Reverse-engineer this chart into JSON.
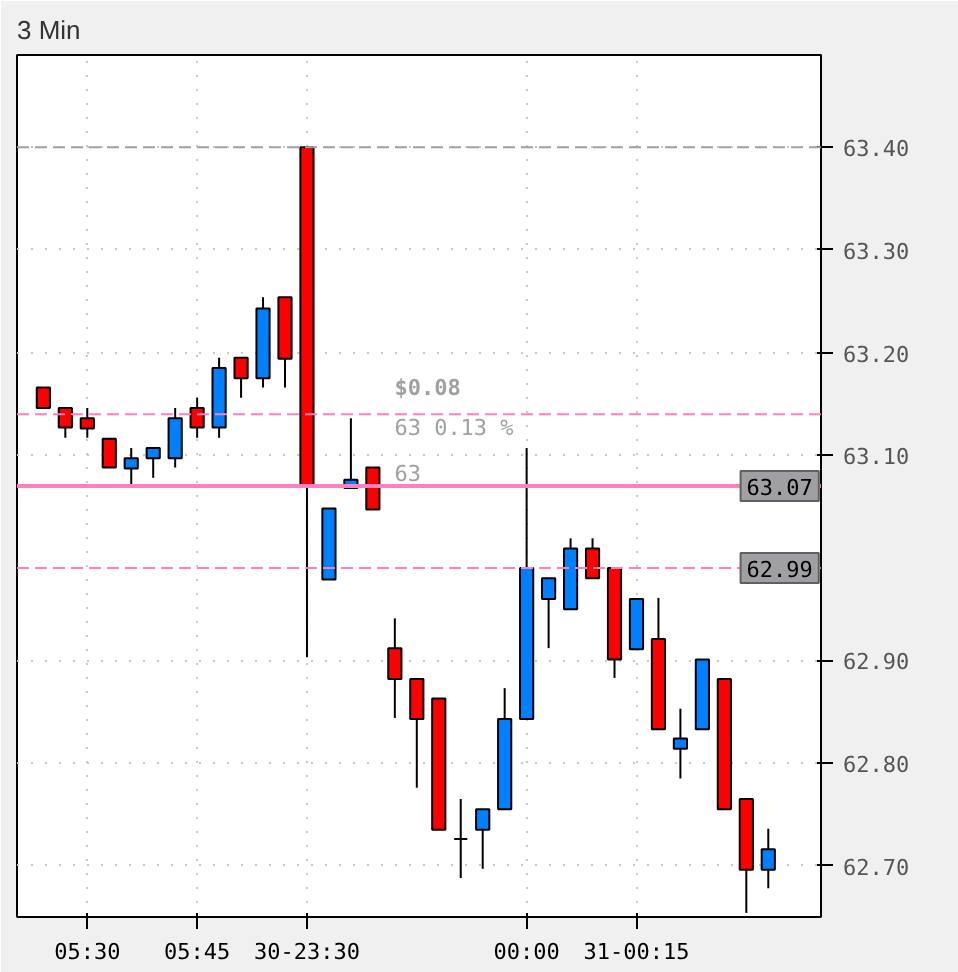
{
  "chart_data": {
    "type": "candlestick",
    "title": "3 Min",
    "categories": [
      null,
      null,
      "05:30",
      null,
      null,
      null,
      null,
      "05:45",
      null,
      null,
      null,
      null,
      "30-23:30",
      null,
      null,
      null,
      null,
      null,
      null,
      null,
      null,
      null,
      "00:00",
      null,
      null,
      null,
      null,
      "31-00:15",
      null,
      null,
      null,
      null,
      null,
      null
    ],
    "ohlc": [
      [
        63.166,
        63.166,
        63.146,
        63.146
      ],
      [
        63.146,
        63.146,
        63.117,
        63.127
      ],
      [
        63.136,
        63.146,
        63.117,
        63.126
      ],
      [
        63.116,
        63.116,
        63.088,
        63.088
      ],
      [
        63.087,
        63.107,
        63.069,
        63.097
      ],
      [
        63.097,
        63.107,
        63.078,
        63.107
      ],
      [
        63.097,
        63.146,
        63.088,
        63.136
      ],
      [
        63.146,
        63.156,
        63.117,
        63.127
      ],
      [
        63.127,
        63.195,
        63.117,
        63.185
      ],
      [
        63.195,
        63.195,
        63.156,
        63.175
      ],
      [
        63.175,
        63.254,
        63.166,
        63.243
      ],
      [
        63.254,
        63.254,
        63.166,
        63.194
      ],
      [
        63.4,
        63.4,
        62.903,
        63.07
      ],
      [
        62.979,
        63.048,
        62.979,
        63.048
      ],
      [
        63.068,
        63.136,
        63.068,
        63.076
      ],
      [
        63.088,
        63.088,
        63.047,
        63.047
      ],
      [
        62.912,
        62.941,
        62.844,
        62.882
      ],
      [
        62.882,
        62.882,
        62.776,
        62.843
      ],
      [
        62.863,
        62.863,
        62.735,
        62.735
      ],
      [
        62.726,
        62.765,
        62.688,
        62.726
      ],
      [
        62.735,
        62.755,
        62.697,
        62.755
      ],
      [
        62.755,
        62.873,
        62.755,
        62.843
      ],
      [
        62.843,
        63.107,
        62.843,
        62.99
      ],
      [
        62.96,
        62.98,
        62.912,
        62.98
      ],
      [
        62.95,
        63.019,
        62.95,
        63.009
      ],
      [
        63.009,
        63.019,
        62.98,
        62.98
      ],
      [
        62.99,
        62.99,
        62.883,
        62.901
      ],
      [
        62.911,
        62.96,
        62.911,
        62.96
      ],
      [
        62.921,
        62.961,
        62.833,
        62.833
      ],
      [
        62.814,
        62.853,
        62.785,
        62.824
      ],
      [
        62.833,
        62.901,
        62.833,
        62.901
      ],
      [
        62.882,
        62.882,
        62.755,
        62.755
      ],
      [
        62.765,
        62.765,
        62.654,
        62.696
      ],
      [
        62.696,
        62.736,
        62.678,
        62.716
      ]
    ],
    "colors": [
      "#ff0000",
      "#ff0000",
      "#ff0000",
      "#ff0000",
      "#0080ff",
      "#0080ff",
      "#0080ff",
      "#ff0000",
      "#0080ff",
      "#ff0000",
      "#0080ff",
      "#ff0000",
      "#ff0000",
      "#0080ff",
      "#0080ff",
      "#ff0000",
      "#ff0000",
      "#ff0000",
      "#ff0000",
      "#000000",
      "#0080ff",
      "#0080ff",
      "#0080ff",
      "#0080ff",
      "#0080ff",
      "#ff0000",
      "#ff0000",
      "#0080ff",
      "#ff0000",
      "#0080ff",
      "#0080ff",
      "#ff0000",
      "#ff0000",
      "#0080ff"
    ],
    "ylim": [
      62.65,
      63.49
    ],
    "yticks": [
      {
        "value": 62.7,
        "label": "62.70"
      },
      {
        "value": 62.8,
        "label": "62.80"
      },
      {
        "value": 62.9,
        "label": "62.90"
      },
      {
        "value": 63.1,
        "label": "63.10"
      },
      {
        "value": 63.2,
        "label": "63.20"
      },
      {
        "value": 63.3,
        "label": "63.30"
      },
      {
        "value": 63.4,
        "label": "63.40"
      }
    ],
    "ref_lines": [
      {
        "axis": "y",
        "value": 63.4,
        "label": null,
        "color": "#a0a0a0",
        "line_style": "dashed"
      },
      {
        "axis": "y",
        "value": 63.14,
        "label": null,
        "color": "#ff80c0",
        "line_style": "dashed"
      },
      {
        "axis": "y",
        "value": 63.07,
        "label": "63.07",
        "color": "#ff80c0",
        "line_style": "solid"
      },
      {
        "axis": "y",
        "value": 62.99,
        "label": "62.99",
        "color": "#ff80c0",
        "line_style": "dashed"
      }
    ],
    "annotations": [
      "$0.08",
      "63 0.13 %",
      "63"
    ],
    "grid": true
  }
}
